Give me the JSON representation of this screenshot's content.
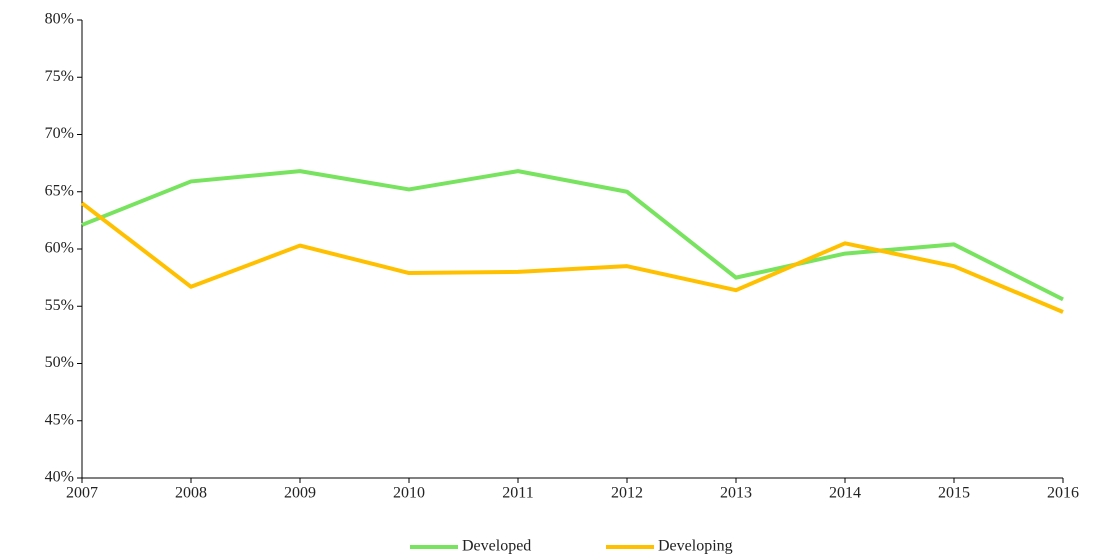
{
  "chart_data": {
    "type": "line",
    "categories": [
      "2007",
      "2008",
      "2009",
      "2010",
      "2011",
      "2012",
      "2013",
      "2014",
      "2015",
      "2016"
    ],
    "series": [
      {
        "name": "Developed",
        "color": "#77e35e",
        "values": [
          62.1,
          65.9,
          66.8,
          65.2,
          66.8,
          65.0,
          57.5,
          59.6,
          60.4,
          55.6
        ]
      },
      {
        "name": "Developing",
        "color": "#ffc000",
        "values": [
          64.0,
          56.7,
          60.3,
          57.9,
          58.0,
          58.5,
          56.4,
          60.5,
          58.5,
          54.5
        ]
      }
    ],
    "ylim": [
      40,
      80
    ],
    "yticks": [
      {
        "value": 40,
        "label": "40%"
      },
      {
        "value": 45,
        "label": "45%"
      },
      {
        "value": 50,
        "label": "50%"
      },
      {
        "value": 55,
        "label": "55%"
      },
      {
        "value": 60,
        "label": "60%"
      },
      {
        "value": 65,
        "label": "65%"
      },
      {
        "value": 70,
        "label": "70%"
      },
      {
        "value": 75,
        "label": "75%"
      },
      {
        "value": 80,
        "label": "80%"
      }
    ],
    "grid": false,
    "legend": "bottom"
  }
}
